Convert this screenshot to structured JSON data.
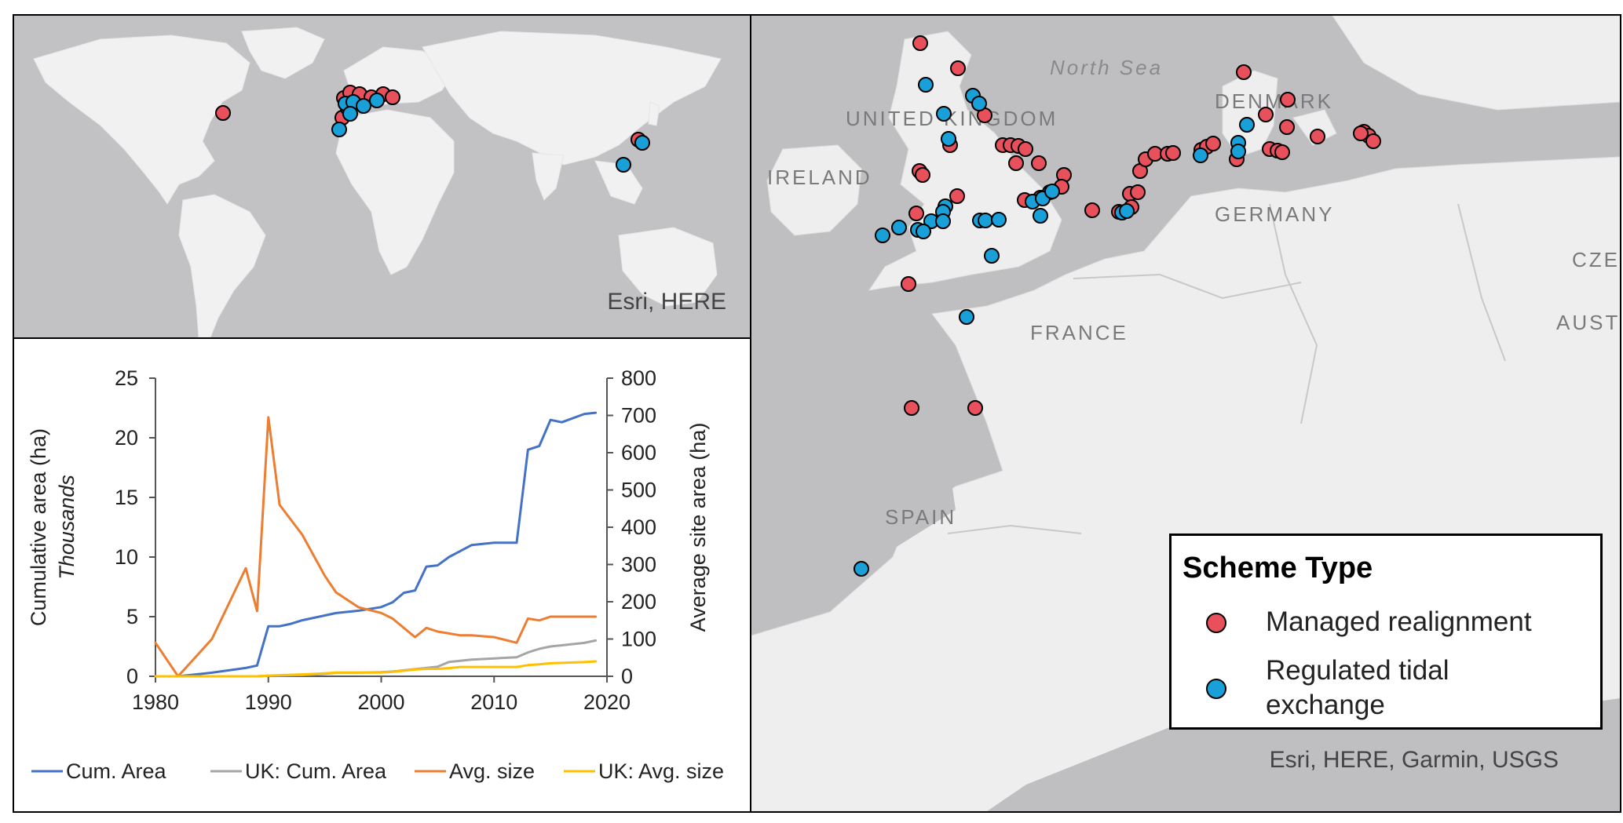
{
  "world_map": {
    "attribution": "Esri, HERE"
  },
  "europe_map": {
    "attribution": "Esri, HERE, Garmin, USGS",
    "sea_labels": [
      "North Sea"
    ],
    "country_labels": [
      "UNITED KINGDOM",
      "IRELAND",
      "DENMARK",
      "GERMANY",
      "CZE",
      "FRANCE",
      "AUSTR",
      "SPAIN"
    ],
    "legend": {
      "title": "Scheme Type",
      "items": [
        {
          "label": "Managed realignment",
          "color": "#e8505b"
        },
        {
          "label": "Regulated tidal exchange",
          "color": "#1aa0d8"
        }
      ]
    }
  },
  "chart_data": {
    "type": "line",
    "x": [
      1980,
      1982,
      1985,
      1988,
      1989,
      1990,
      1991,
      1992,
      1993,
      1995,
      1996,
      1998,
      2000,
      2001,
      2002,
      2003,
      2004,
      2005,
      2006,
      2007,
      2008,
      2010,
      2012,
      2013,
      2014,
      2015,
      2016,
      2018,
      2019
    ],
    "xlim": [
      1980,
      2020
    ],
    "xticks": [
      "1980",
      "1990",
      "2000",
      "2010",
      "2020"
    ],
    "y_left": {
      "label": "Cumulative area (ha)",
      "sublabel": "Thousands",
      "lim": [
        0,
        25
      ],
      "ticks": [
        "0",
        "5",
        "10",
        "15",
        "20",
        "25"
      ]
    },
    "y_right": {
      "label": "Average site area (ha)",
      "lim": [
        0,
        800
      ],
      "ticks": [
        "0",
        "100",
        "200",
        "300",
        "400",
        "500",
        "600",
        "700",
        "800"
      ]
    },
    "series": [
      {
        "name": "Cum. Area",
        "axis": "left",
        "color": "#4472c4",
        "values": [
          0,
          0,
          0.3,
          0.7,
          0.9,
          4.2,
          4.2,
          4.4,
          4.7,
          5.1,
          5.3,
          5.5,
          5.8,
          6.2,
          7.0,
          7.2,
          9.2,
          9.3,
          10.0,
          10.5,
          11.0,
          11.2,
          11.2,
          19.0,
          19.3,
          21.5,
          21.3,
          22.0,
          22.1
        ]
      },
      {
        "name": "UK: Cum. Area",
        "axis": "left",
        "color": "#a5a5a5",
        "values": [
          0,
          0,
          0,
          0,
          0,
          0.05,
          0.06,
          0.08,
          0.1,
          0.2,
          0.3,
          0.3,
          0.35,
          0.4,
          0.5,
          0.6,
          0.7,
          0.8,
          1.2,
          1.3,
          1.4,
          1.5,
          1.6,
          2.0,
          2.3,
          2.5,
          2.6,
          2.8,
          3.0
        ]
      },
      {
        "name": "Avg. size",
        "axis": "right",
        "color": "#ed7d31",
        "values": [
          90,
          0,
          100,
          290,
          175,
          695,
          460,
          420,
          380,
          270,
          225,
          185,
          170,
          155,
          130,
          105,
          130,
          120,
          115,
          110,
          110,
          105,
          90,
          155,
          150,
          160,
          160,
          160,
          160
        ]
      },
      {
        "name": "UK: Avg. size",
        "axis": "right",
        "color": "#ffc000",
        "values": [
          0,
          0,
          0,
          0,
          0,
          2,
          3,
          4,
          5,
          8,
          10,
          10,
          10,
          12,
          15,
          18,
          20,
          20,
          22,
          25,
          25,
          25,
          25,
          30,
          32,
          35,
          36,
          38,
          40
        ]
      }
    ]
  }
}
